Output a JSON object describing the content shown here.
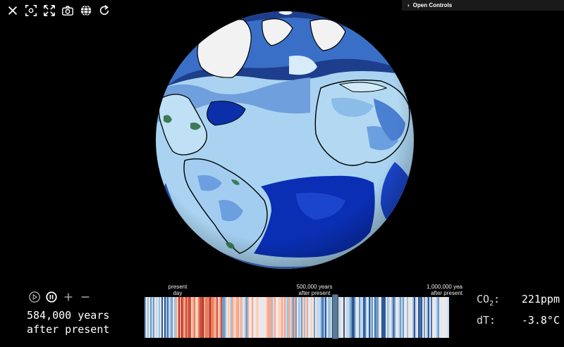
{
  "toolbar": {
    "icons": [
      "close-icon",
      "capture-icon",
      "fullscreen-icon",
      "camera-icon",
      "globe-icon",
      "refresh-icon"
    ]
  },
  "controls": {
    "label": "Open Controls"
  },
  "playback": {
    "play_icon": "play-icon",
    "pause_icon": "pause-icon",
    "zoom_in_icon": "plus-icon",
    "zoom_out_icon": "minus-icon"
  },
  "time": {
    "line1": "584,000 years",
    "line2": "after present"
  },
  "timeline": {
    "label_start_1": "present",
    "label_start_2": "day",
    "label_mid_1": "500,000 years",
    "label_mid_2": "after present",
    "label_end_1": "1,000,000 yea",
    "label_end_2": "after present",
    "position_fraction": 0.584
  },
  "readouts": {
    "co2_label": "CO",
    "co2_sub": "2",
    "co2_sep": ":",
    "co2_value": "221ppm",
    "dt_label": "dT:",
    "dt_value": "-3.8°C"
  }
}
